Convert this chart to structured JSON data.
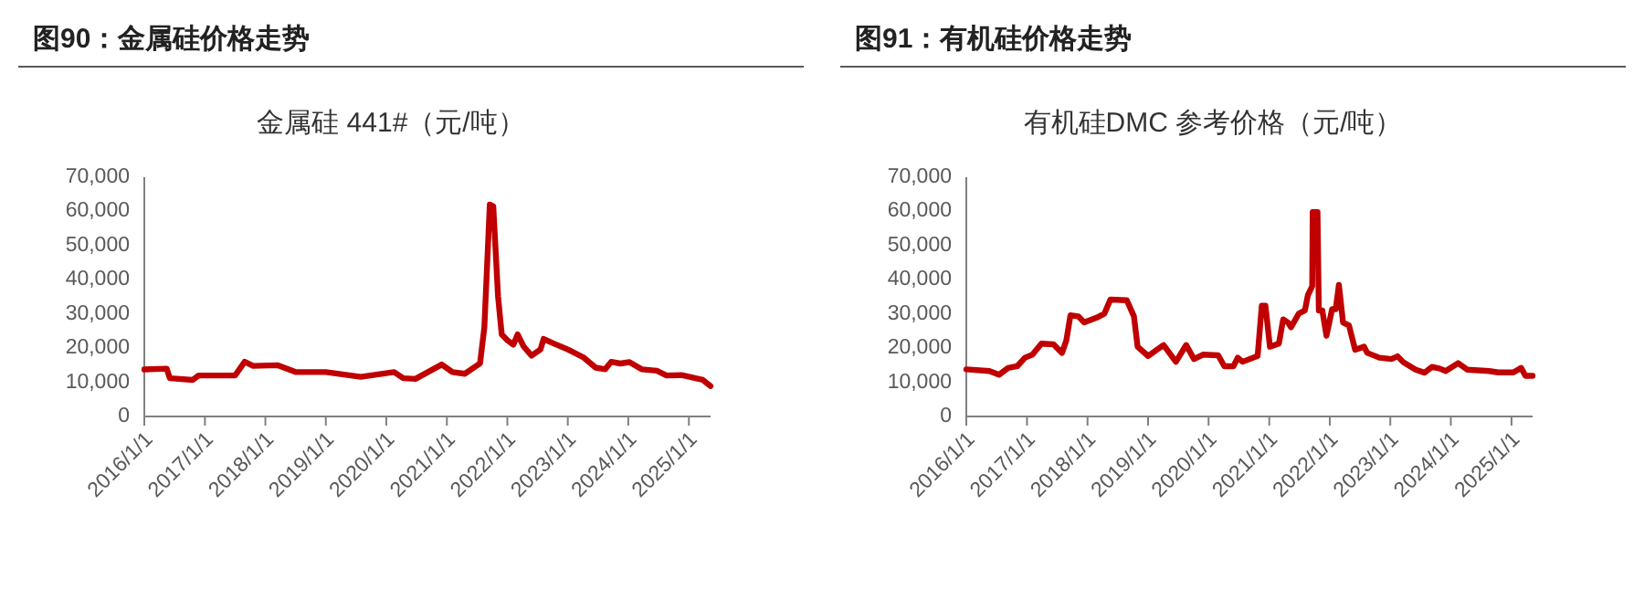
{
  "chart_data": [
    {
      "type": "line",
      "title": "图90：金属硅价格走势",
      "subtitle": "金属硅 441#（元/吨）",
      "x": [
        "2016-01-01",
        "2016-05-15",
        "2016-06-03",
        "2016-10-19",
        "2016-11-24",
        "2017-07-02",
        "2017-08-29",
        "2017-10-19",
        "2018-03-14",
        "2018-07-02",
        "2019-01-01",
        "2019-07-31",
        "2020-02-17",
        "2020-04-13",
        "2020-06-25",
        "2020-12-01",
        "2021-02-03",
        "2021-04-20",
        "2021-07-20",
        "2021-08-15",
        "2021-09-17",
        "2021-10-08",
        "2021-11-06",
        "2021-11-28",
        "2022-01-01",
        "2022-02-06",
        "2022-03-04",
        "2022-04-09",
        "2022-05-27",
        "2022-07-20",
        "2022-08-08",
        "2022-10-05",
        "2023-01-01",
        "2023-04-05",
        "2023-06-18",
        "2023-08-15",
        "2023-09-20",
        "2023-11-14",
        "2024-01-08",
        "2024-03-22",
        "2024-06-21",
        "2024-08-19",
        "2024-11-17",
        "2025-01-30",
        "2025-03-26",
        "2025-05-12"
      ],
      "series": [
        {
          "color": "#c00000",
          "values": [
            13750,
            14000,
            11200,
            10700,
            12000,
            12000,
            16000,
            14800,
            15000,
            13000,
            13000,
            11600,
            13000,
            11200,
            11000,
            15200,
            13000,
            12500,
            15500,
            26000,
            62000,
            61500,
            35000,
            24000,
            22300,
            21000,
            24000,
            20500,
            17800,
            19600,
            22700,
            21400,
            19600,
            17300,
            14300,
            13800,
            16000,
            15500,
            15900,
            13800,
            13400,
            12000,
            12100,
            11300,
            10700,
            8900
          ]
        }
      ],
      "xlim": [
        "2016-01-01",
        "2025-05-12"
      ],
      "xticks": [
        {
          "value": "2016-01-01",
          "label": "2016/1/1"
        },
        {
          "value": "2017-01-01",
          "label": "2017/1/1"
        },
        {
          "value": "2018-01-01",
          "label": "2018/1/1"
        },
        {
          "value": "2019-01-01",
          "label": "2019/1/1"
        },
        {
          "value": "2020-01-01",
          "label": "2020/1/1"
        },
        {
          "value": "2021-01-01",
          "label": "2021/1/1"
        },
        {
          "value": "2022-01-01",
          "label": "2022/1/1"
        },
        {
          "value": "2023-01-01",
          "label": "2023/1/1"
        },
        {
          "value": "2024-01-01",
          "label": "2024/1/1"
        },
        {
          "value": "2025-01-01",
          "label": "2025/1/1"
        }
      ],
      "ylim": [
        0,
        70000
      ],
      "yticks": [
        0,
        {
          "value": 10000,
          "label": "10,000"
        },
        {
          "value": 20000,
          "label": "20,000"
        },
        {
          "value": 30000,
          "label": "30,000"
        },
        {
          "value": 40000,
          "label": "40,000"
        },
        {
          "value": 50000,
          "label": "50,000"
        },
        {
          "value": 60000,
          "label": "60,000"
        },
        {
          "value": 70000,
          "label": "70,000"
        }
      ]
    },
    {
      "type": "line",
      "title": "图91：有机硅价格走势",
      "subtitle": "有机硅DMC 参考价格（元/吨）",
      "x": [
        "2016-01-01",
        "2016-05-19",
        "2016-07-16",
        "2016-09-09",
        "2016-11-03",
        "2016-12-20",
        "2017-02-03",
        "2017-03-29",
        "2017-06-10",
        "2017-07-31",
        "2017-08-26",
        "2017-09-20",
        "2017-11-06",
        "2017-12-12",
        "2018-02-25",
        "2018-04-13",
        "2018-05-19",
        "2018-08-26",
        "2018-10-08",
        "2018-10-30",
        "2019-01-01",
        "2019-04-05",
        "2019-06-18",
        "2019-08-19",
        "2019-10-05",
        "2019-11-28",
        "2020-02-28",
        "2020-04-05",
        "2020-05-30",
        "2020-06-25",
        "2020-07-24",
        "2020-10-23",
        "2020-11-17",
        "2020-12-09",
        "2021-01-05",
        "2021-02-28",
        "2021-03-26",
        "2021-04-24",
        "2021-05-12",
        "2021-06-28",
        "2021-08-04",
        "2021-08-22",
        "2021-09-17",
        "2021-09-20",
        "2021-10-19",
        "2021-10-27",
        "2021-11-17",
        "2021-12-12",
        "2022-01-15",
        "2022-02-06",
        "2022-02-25",
        "2022-03-22",
        "2022-04-27",
        "2022-06-03",
        "2022-07-27",
        "2022-08-15",
        "2022-10-27",
        "2023-01-08",
        "2023-02-14",
        "2023-03-22",
        "2023-06-03",
        "2023-07-27",
        "2023-09-09",
        "2023-10-27",
        "2023-12-01",
        "2024-02-14",
        "2024-04-09",
        "2024-08-19",
        "2024-10-12",
        "2025-01-12",
        "2025-02-28",
        "2025-03-26",
        "2025-05-08"
      ],
      "series": [
        {
          "color": "#c00000",
          "values": [
            13800,
            13300,
            12200,
            14200,
            14700,
            17200,
            18100,
            21300,
            21100,
            18600,
            22200,
            29600,
            29300,
            27500,
            28900,
            30100,
            34200,
            34000,
            29300,
            20400,
            17700,
            20900,
            16000,
            20900,
            16800,
            18100,
            17900,
            14700,
            14700,
            17200,
            16000,
            17700,
            32400,
            32400,
            20400,
            21300,
            28400,
            27500,
            26100,
            30100,
            31000,
            35500,
            38100,
            59800,
            59800,
            31000,
            31000,
            23600,
            31400,
            31400,
            38500,
            27500,
            26600,
            19500,
            20400,
            18600,
            17200,
            16800,
            17600,
            15800,
            13700,
            12800,
            14500,
            14000,
            13300,
            15600,
            13700,
            13300,
            12900,
            12900,
            14200,
            11900,
            11900
          ]
        }
      ],
      "xlim": [
        "2016-01-01",
        "2025-05-08"
      ],
      "xticks": [
        {
          "value": "2016-01-01",
          "label": "2016/1/1"
        },
        {
          "value": "2017-01-01",
          "label": "2017/1/1"
        },
        {
          "value": "2018-01-01",
          "label": "2018/1/1"
        },
        {
          "value": "2019-01-01",
          "label": "2019/1/1"
        },
        {
          "value": "2020-01-01",
          "label": "2020/1/1"
        },
        {
          "value": "2021-01-01",
          "label": "2021/1/1"
        },
        {
          "value": "2022-01-01",
          "label": "2022/1/1"
        },
        {
          "value": "2023-01-01",
          "label": "2023/1/1"
        },
        {
          "value": "2024-01-01",
          "label": "2024/1/1"
        },
        {
          "value": "2025-01-01",
          "label": "2025/1/1"
        }
      ],
      "ylim": [
        0,
        70000
      ],
      "yticks": [
        0,
        {
          "value": 10000,
          "label": "10,000"
        },
        {
          "value": 20000,
          "label": "20,000"
        },
        {
          "value": 30000,
          "label": "30,000"
        },
        {
          "value": 40000,
          "label": "40,000"
        },
        {
          "value": 50000,
          "label": "50,000"
        },
        {
          "value": 60000,
          "label": "60,000"
        },
        {
          "value": 70000,
          "label": "70,000"
        }
      ]
    }
  ]
}
